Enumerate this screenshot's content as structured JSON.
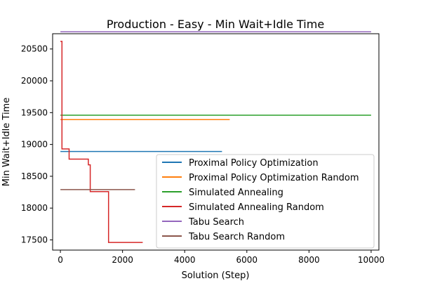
{
  "chart_data": {
    "type": "line",
    "title": "Production - Easy - Min Wait+Idle Time",
    "xlabel": "Solution (Step)",
    "ylabel": "Min Wait+Idle Time",
    "xlim": [
      -250,
      10250
    ],
    "ylim": [
      17340,
      20740
    ],
    "x_ticks": [
      0,
      2000,
      4000,
      6000,
      8000,
      10000
    ],
    "y_ticks": [
      17500,
      18000,
      18500,
      19000,
      19500,
      20000,
      20500
    ],
    "grid": false,
    "legend_position": "lower right",
    "series": [
      {
        "name": "Proximal Policy Optimization",
        "color": "#1f77b4",
        "points": [
          [
            0,
            18890
          ],
          [
            5200,
            18890
          ]
        ]
      },
      {
        "name": "Proximal Policy Optimization Random",
        "color": "#ff7f0e",
        "points": [
          [
            0,
            19390
          ],
          [
            5450,
            19390
          ]
        ]
      },
      {
        "name": "Simulated Annealing",
        "color": "#2ca02c",
        "points": [
          [
            0,
            19460
          ],
          [
            10000,
            19460
          ]
        ]
      },
      {
        "name": "Simulated Annealing Random",
        "color": "#d62728",
        "points": [
          [
            0,
            20620
          ],
          [
            50,
            20620
          ],
          [
            50,
            18930
          ],
          [
            280,
            18930
          ],
          [
            280,
            18770
          ],
          [
            900,
            18770
          ],
          [
            900,
            18680
          ],
          [
            960,
            18680
          ],
          [
            960,
            18260
          ],
          [
            1550,
            18260
          ],
          [
            1550,
            17460
          ],
          [
            2650,
            17460
          ]
        ]
      },
      {
        "name": "Tabu Search",
        "color": "#9467bd",
        "points": [
          [
            0,
            20770
          ],
          [
            10000,
            20770
          ]
        ]
      },
      {
        "name": "Tabu Search Random",
        "color": "#8c564b",
        "points": [
          [
            0,
            18290
          ],
          [
            2400,
            18290
          ]
        ]
      }
    ]
  }
}
